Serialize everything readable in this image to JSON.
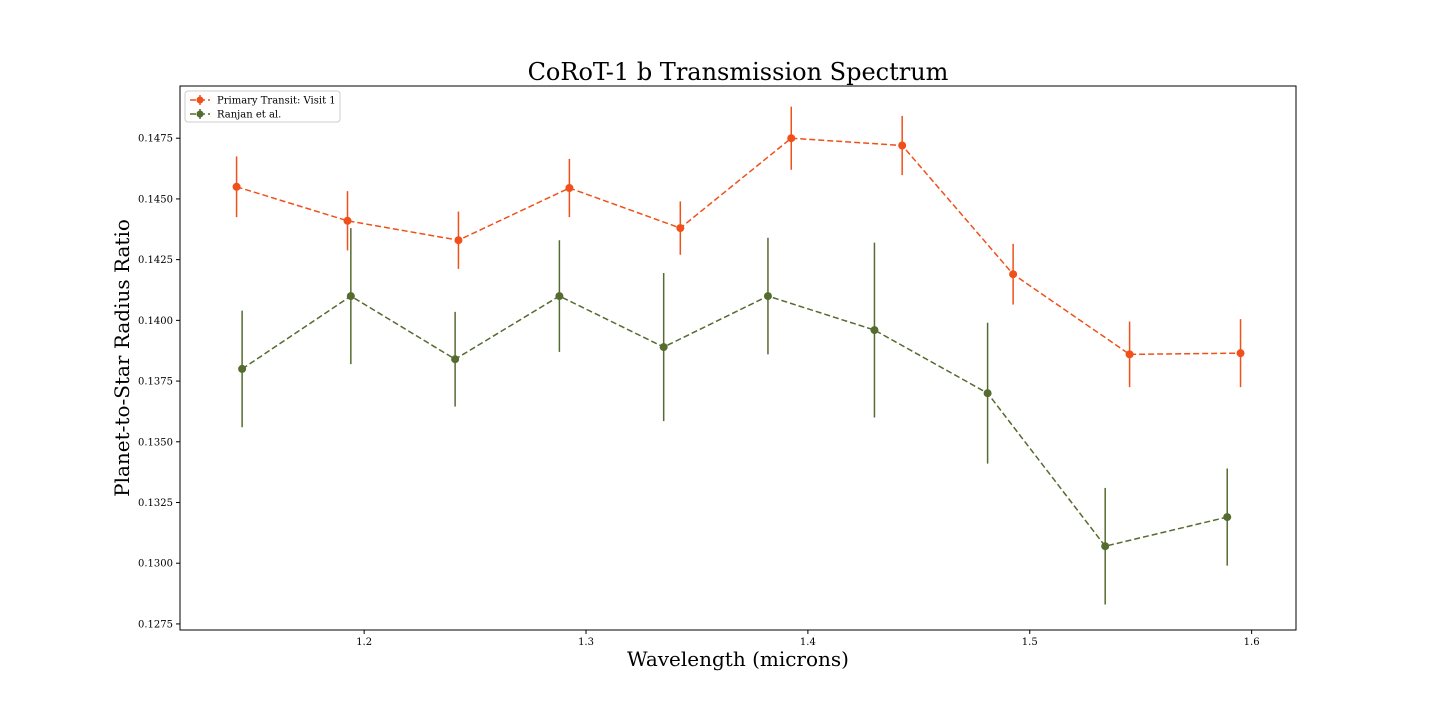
{
  "chart_data": {
    "type": "line",
    "title": "CoRoT-1 b Transmission Spectrum",
    "xlabel": "Wavelength (microns)",
    "ylabel": "Planet-to-Star Radius Ratio",
    "xlim": [
      1.117,
      1.62
    ],
    "ylim": [
      0.12725,
      0.14965
    ],
    "xticks": [
      1.2,
      1.3,
      1.4,
      1.5,
      1.6
    ],
    "xtick_labels": [
      "1.2",
      "1.3",
      "1.4",
      "1.5",
      "1.6"
    ],
    "yticks": [
      0.1275,
      0.13,
      0.1325,
      0.135,
      0.1375,
      0.14,
      0.1425,
      0.145,
      0.1475
    ],
    "ytick_labels": [
      "0.1275",
      "0.1300",
      "0.1325",
      "0.1350",
      "0.1375",
      "0.1400",
      "0.1425",
      "0.1450",
      "0.1475"
    ],
    "grid": false,
    "legend_position": "top-left",
    "series": [
      {
        "name": "Primary Transit: Visit 1",
        "color": "#f0501a",
        "line_style": "dashed",
        "marker": "circle",
        "x": [
          1.1425,
          1.1925,
          1.2425,
          1.2925,
          1.3425,
          1.3925,
          1.4425,
          1.4925,
          1.545,
          1.595
        ],
        "y": [
          0.1455,
          0.1441,
          0.1433,
          0.14545,
          0.1438,
          0.1475,
          0.1472,
          0.1419,
          0.1386,
          0.13865
        ],
        "yerr": [
          0.00125,
          0.00122,
          0.00118,
          0.0012,
          0.0011,
          0.0013,
          0.00122,
          0.00125,
          0.00135,
          0.0014
        ]
      },
      {
        "name": "Ranjan et al.",
        "color": "#556b2f",
        "line_style": "dashed",
        "marker": "circle",
        "x": [
          1.145,
          1.194,
          1.241,
          1.288,
          1.335,
          1.382,
          1.43,
          1.481,
          1.534,
          1.589
        ],
        "y": [
          0.138,
          0.141,
          0.1384,
          0.141,
          0.1389,
          0.141,
          0.1396,
          0.137,
          0.1307,
          0.1319
        ],
        "yerr": [
          0.0024,
          0.0028,
          0.00195,
          0.0023,
          0.00305,
          0.0024,
          0.0036,
          0.0029,
          0.0024,
          0.002
        ]
      }
    ]
  }
}
